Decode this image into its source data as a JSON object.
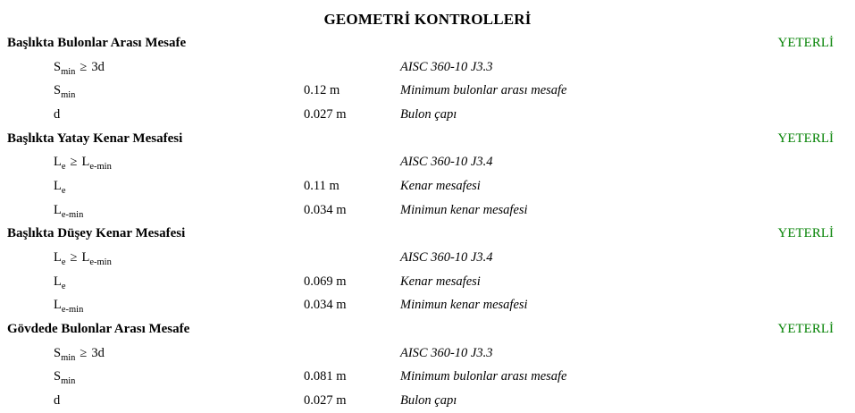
{
  "title": "GEOMETRİ KONTROLLERİ",
  "status_color": "#008000",
  "sections": [
    {
      "heading": "Başlıkta Bulonlar Arası Mesafe",
      "status": "YETERLİ",
      "rows": [
        {
          "f": {
            "p1": "S",
            "s1": "min",
            "op": "≥",
            "p2": "3d",
            "s2": ""
          },
          "value": "",
          "desc": "AISC 360-10 J3.3"
        },
        {
          "f": {
            "p1": "S",
            "s1": "min",
            "op": "",
            "p2": "",
            "s2": ""
          },
          "value": "0.12 m",
          "desc": "Minimum bulonlar arası mesafe"
        },
        {
          "f": {
            "p1": "d",
            "s1": "",
            "op": "",
            "p2": "",
            "s2": ""
          },
          "value": "0.027 m",
          "desc": "Bulon çapı"
        }
      ]
    },
    {
      "heading": "Başlıkta Yatay Kenar Mesafesi",
      "status": "YETERLİ",
      "rows": [
        {
          "f": {
            "p1": "L",
            "s1": "e",
            "op": "≥",
            "p2": "L",
            "s2": "e-min"
          },
          "value": "",
          "desc": "AISC 360-10 J3.4"
        },
        {
          "f": {
            "p1": "L",
            "s1": "e",
            "op": "",
            "p2": "",
            "s2": ""
          },
          "value": "0.11 m",
          "desc": "Kenar mesafesi"
        },
        {
          "f": {
            "p1": "L",
            "s1": "e-min",
            "op": "",
            "p2": "",
            "s2": ""
          },
          "value": "0.034 m",
          "desc": "Minimun kenar mesafesi"
        }
      ]
    },
    {
      "heading": "Başlıkta Düşey Kenar Mesafesi",
      "status": "YETERLİ",
      "rows": [
        {
          "f": {
            "p1": "L",
            "s1": "e",
            "op": "≥",
            "p2": "L",
            "s2": "e-min"
          },
          "value": "",
          "desc": "AISC 360-10 J3.4"
        },
        {
          "f": {
            "p1": "L",
            "s1": "e",
            "op": "",
            "p2": "",
            "s2": ""
          },
          "value": "0.069 m",
          "desc": "Kenar mesafesi"
        },
        {
          "f": {
            "p1": "L",
            "s1": "e-min",
            "op": "",
            "p2": "",
            "s2": ""
          },
          "value": "0.034 m",
          "desc": "Minimun kenar mesafesi"
        }
      ]
    },
    {
      "heading": "Gövdede Bulonlar Arası Mesafe",
      "status": "YETERLİ",
      "rows": [
        {
          "f": {
            "p1": "S",
            "s1": "min",
            "op": "≥",
            "p2": "3d",
            "s2": ""
          },
          "value": "",
          "desc": "AISC 360-10 J3.3"
        },
        {
          "f": {
            "p1": "S",
            "s1": "min",
            "op": "",
            "p2": "",
            "s2": ""
          },
          "value": "0.081 m",
          "desc": "Minimum bulonlar arası mesafe"
        },
        {
          "f": {
            "p1": "d",
            "s1": "",
            "op": "",
            "p2": "",
            "s2": ""
          },
          "value": "0.027 m",
          "desc": "Bulon çapı"
        }
      ]
    }
  ]
}
